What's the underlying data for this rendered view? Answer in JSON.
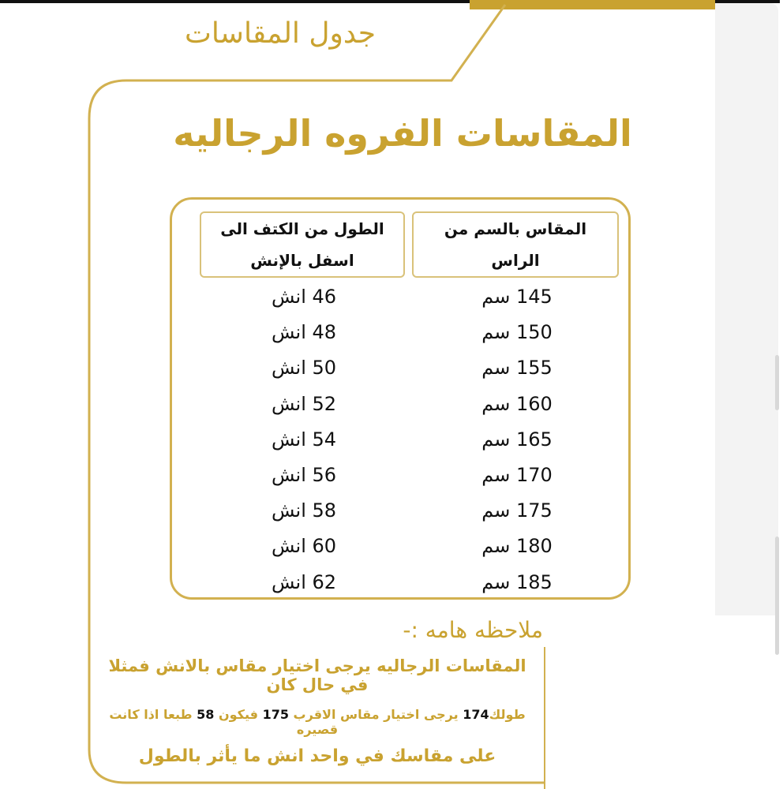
{
  "title": "جدول المقاسات",
  "subtitle": "المقاسات الفروه الرجاليه",
  "colors": {
    "gold": "#c9a230",
    "text": "#111111"
  },
  "table": {
    "headers": [
      "المقاس بالسم من الراس",
      "الطول من الكتف الى اسفل بالإنش"
    ],
    "rows": [
      {
        "size": "145 سم",
        "length": "46 انش"
      },
      {
        "size": "150 سم",
        "length": "48 انش"
      },
      {
        "size": "155 سم",
        "length": "50 انش"
      },
      {
        "size": "160 سم",
        "length": "52 انش"
      },
      {
        "size": "165 سم",
        "length": "54 انش"
      },
      {
        "size": "170 سم",
        "length": "56 انش"
      },
      {
        "size": "175 سم",
        "length": "58 انش"
      },
      {
        "size": "180 سم",
        "length": "60 انش"
      },
      {
        "size": "185 سم",
        "length": "62 انش"
      }
    ]
  },
  "note": {
    "title": "ملاحظه هامه :-",
    "line1": "المقاسات الرجاليه يرجى اختيار مقاس بالانش فمثلا في حال كان",
    "line2": [
      "طولك",
      "174",
      " يرجى اختيار مقاس الاقرب ",
      "175",
      " فيكون ",
      "58",
      " طبعا اذا كانت قصيره"
    ],
    "line3": "على مقاسك في واحد انش ما يأثر بالطول"
  }
}
